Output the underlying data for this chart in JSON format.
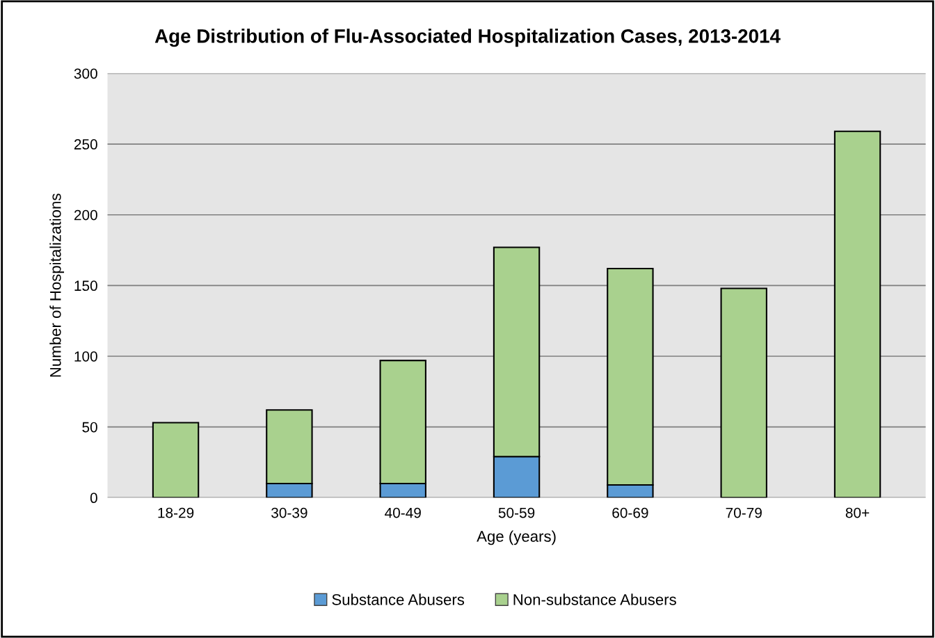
{
  "chart_data": {
    "type": "bar",
    "title": "Age Distribution of Flu-Associated Hospitalization Cases, 2013-2014",
    "xlabel": "Age (years)",
    "ylabel": "Number of Hospitalizations",
    "categories": [
      "18-29",
      "30-39",
      "40-49",
      "50-59",
      "60-69",
      "70-79",
      "80+"
    ],
    "stacked": true,
    "series": [
      {
        "name": "Substance Abusers",
        "color": "#5b9bd5",
        "values": [
          null,
          10,
          10,
          29,
          9,
          0,
          null
        ]
      },
      {
        "name": "Non-substance Abusers",
        "color": "#a9d18e",
        "values": [
          53,
          52,
          87,
          148,
          153,
          148,
          259
        ]
      }
    ],
    "ylim": [
      0,
      300
    ],
    "yticks": [
      0,
      50,
      100,
      150,
      200,
      250,
      300
    ],
    "grid": "y",
    "legend": "bottom"
  }
}
